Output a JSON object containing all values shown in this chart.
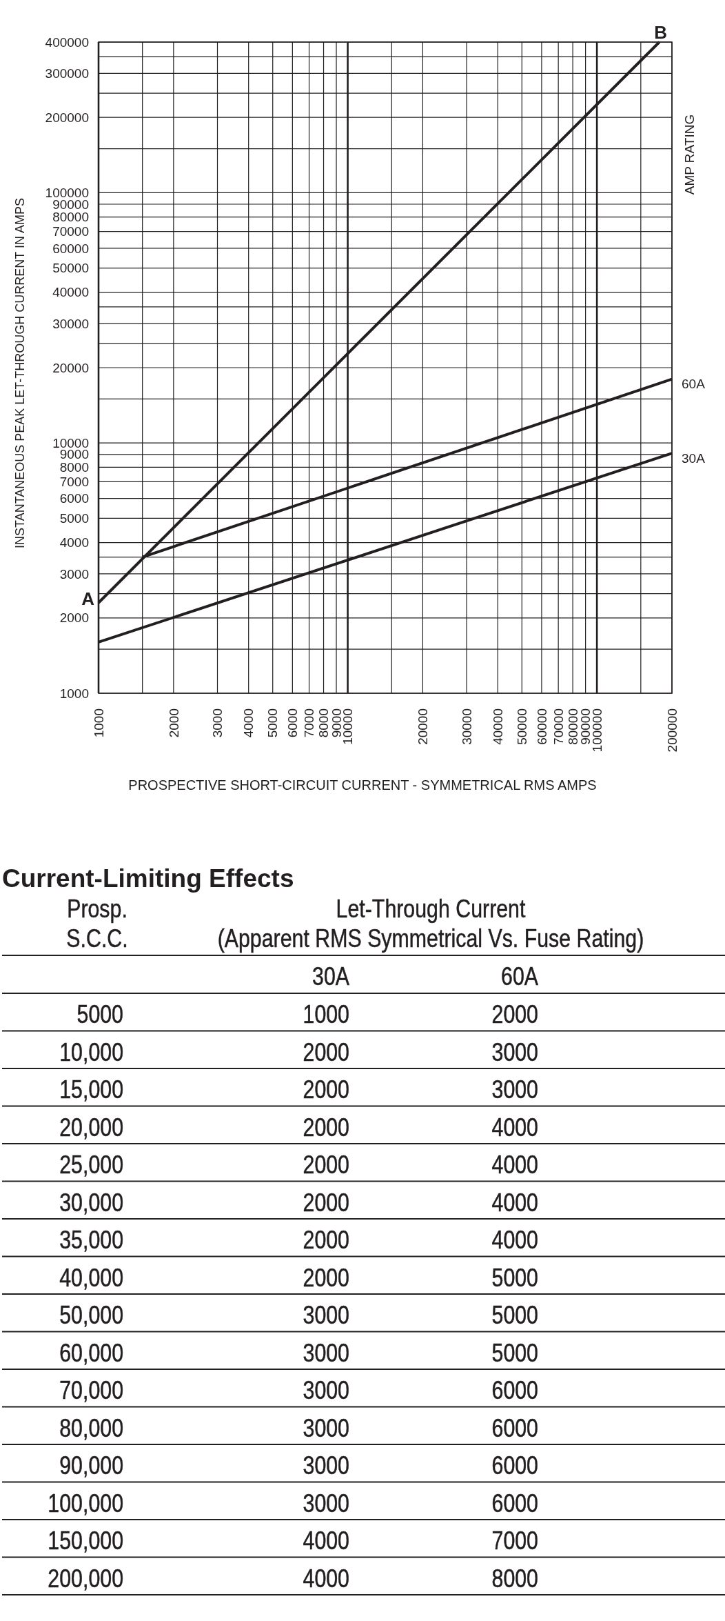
{
  "chart_data": [
    {
      "type": "line",
      "xlabel": "PROSPECTIVE SHORT-CIRCUIT CURRENT - SYMMETRICAL RMS AMPS",
      "ylabel": "INSTANTANEOUS PEAK LET-THROUGH CURRENT IN AMPS",
      "log": "xy",
      "xlim": [
        1000,
        200000
      ],
      "ylim": [
        1000,
        400000
      ],
      "xticks": [
        1000,
        {
          "value": 1500,
          "label": null
        },
        2000,
        3000,
        4000,
        5000,
        6000,
        7000,
        8000,
        9000,
        10000,
        {
          "value": 15000,
          "label": null
        },
        20000,
        30000,
        40000,
        50000,
        60000,
        70000,
        80000,
        90000,
        100000,
        {
          "value": 150000,
          "label": null
        },
        200000
      ],
      "yticks": [
        1000,
        {
          "value": 1500,
          "label": null
        },
        2000,
        {
          "value": 2500,
          "label": null
        },
        3000,
        {
          "value": 3500,
          "label": null
        },
        4000,
        5000,
        6000,
        7000,
        8000,
        9000,
        10000,
        {
          "value": 15000,
          "label": null
        },
        20000,
        {
          "value": 25000,
          "label": null
        },
        30000,
        {
          "value": 35000,
          "label": null
        },
        40000,
        50000,
        60000,
        70000,
        80000,
        90000,
        100000,
        {
          "value": 150000,
          "label": null
        },
        200000,
        {
          "value": 250000,
          "label": null
        },
        300000,
        {
          "value": 350000,
          "label": null
        },
        400000
      ],
      "grid": true,
      "series": [
        {
          "color": "#231f20",
          "x": [
            1000,
            178000
          ],
          "values": [
            2300,
            400000
          ]
        },
        {
          "name": "60A",
          "color": "#231f20",
          "x": [
            1500,
            200000
          ],
          "values": [
            3500,
            18000
          ]
        },
        {
          "name": "30A",
          "color": "#231f20",
          "x": [
            1000,
            200000
          ],
          "values": [
            1600,
            9100
          ]
        }
      ],
      "annotations": [
        {
          "text": "A",
          "x": 1000,
          "y": 2300
        },
        {
          "text": "B",
          "x": 178000,
          "y": 400000
        },
        "AMP RATING"
      ]
    },
    {
      "type": "heatmap",
      "title": "Current-Limiting Effects",
      "ylabel": "Prosp. S.C.C.",
      "xlabel": "Let-Through Current (Apparent RMS Symmetrical Vs. Fuse Rating)",
      "categories": [
        "30A",
        "60A"
      ],
      "y_categories": [
        "5000",
        "10,000",
        "15,000",
        "20,000",
        "25,000",
        "30,000",
        "35,000",
        "40,000",
        "50,000",
        "60,000",
        "70,000",
        "80,000",
        "90,000",
        "100,000",
        "150,000",
        "200,000"
      ],
      "cells": [
        [
          1000,
          2000
        ],
        [
          2000,
          3000
        ],
        [
          2000,
          3000
        ],
        [
          2000,
          4000
        ],
        [
          2000,
          4000
        ],
        [
          2000,
          4000
        ],
        [
          2000,
          4000
        ],
        [
          2000,
          5000
        ],
        [
          3000,
          5000
        ],
        [
          3000,
          5000
        ],
        [
          3000,
          6000
        ],
        [
          3000,
          6000
        ],
        [
          3000,
          6000
        ],
        [
          3000,
          6000
        ],
        [
          4000,
          7000
        ],
        [
          4000,
          8000
        ]
      ],
      "data_labels": true
    }
  ]
}
